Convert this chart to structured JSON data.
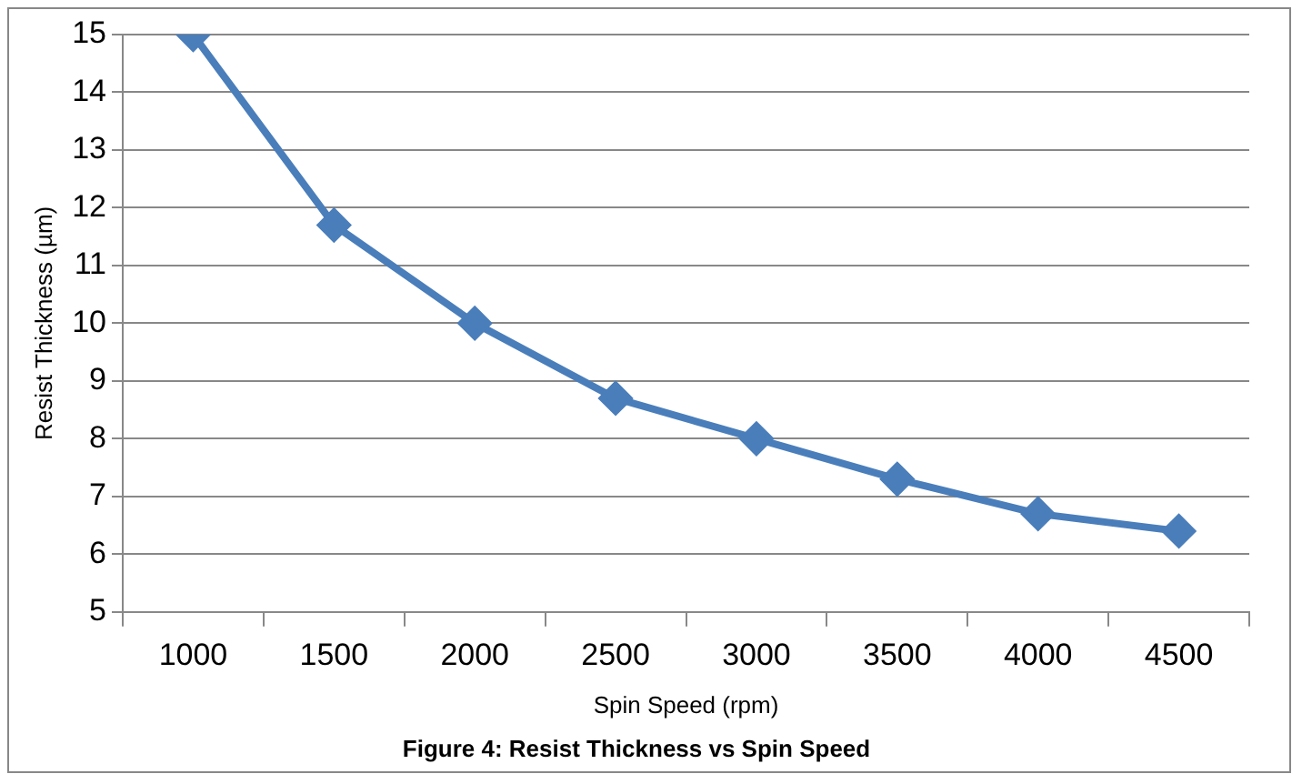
{
  "chart_data": {
    "type": "line",
    "title": "Figure 4: Resist Thickness vs Spin Speed",
    "xlabel": "Spin Speed (rpm)",
    "ylabel": "Resist Thickness (µm)",
    "categories": [
      "1000",
      "1500",
      "2000",
      "2500",
      "3000",
      "3500",
      "4000",
      "4500"
    ],
    "series": [
      {
        "color": "#4a7ebb",
        "values": [
          15,
          11.7,
          10,
          8.7,
          8,
          7.3,
          6.7,
          6.4
        ]
      }
    ],
    "ylim": [
      5,
      15
    ],
    "yticks": [
      5,
      6,
      7,
      8,
      9,
      10,
      11,
      12,
      13,
      14,
      15
    ],
    "grid": "y",
    "legend": false,
    "marker": "diamond",
    "line_style": "solid"
  }
}
